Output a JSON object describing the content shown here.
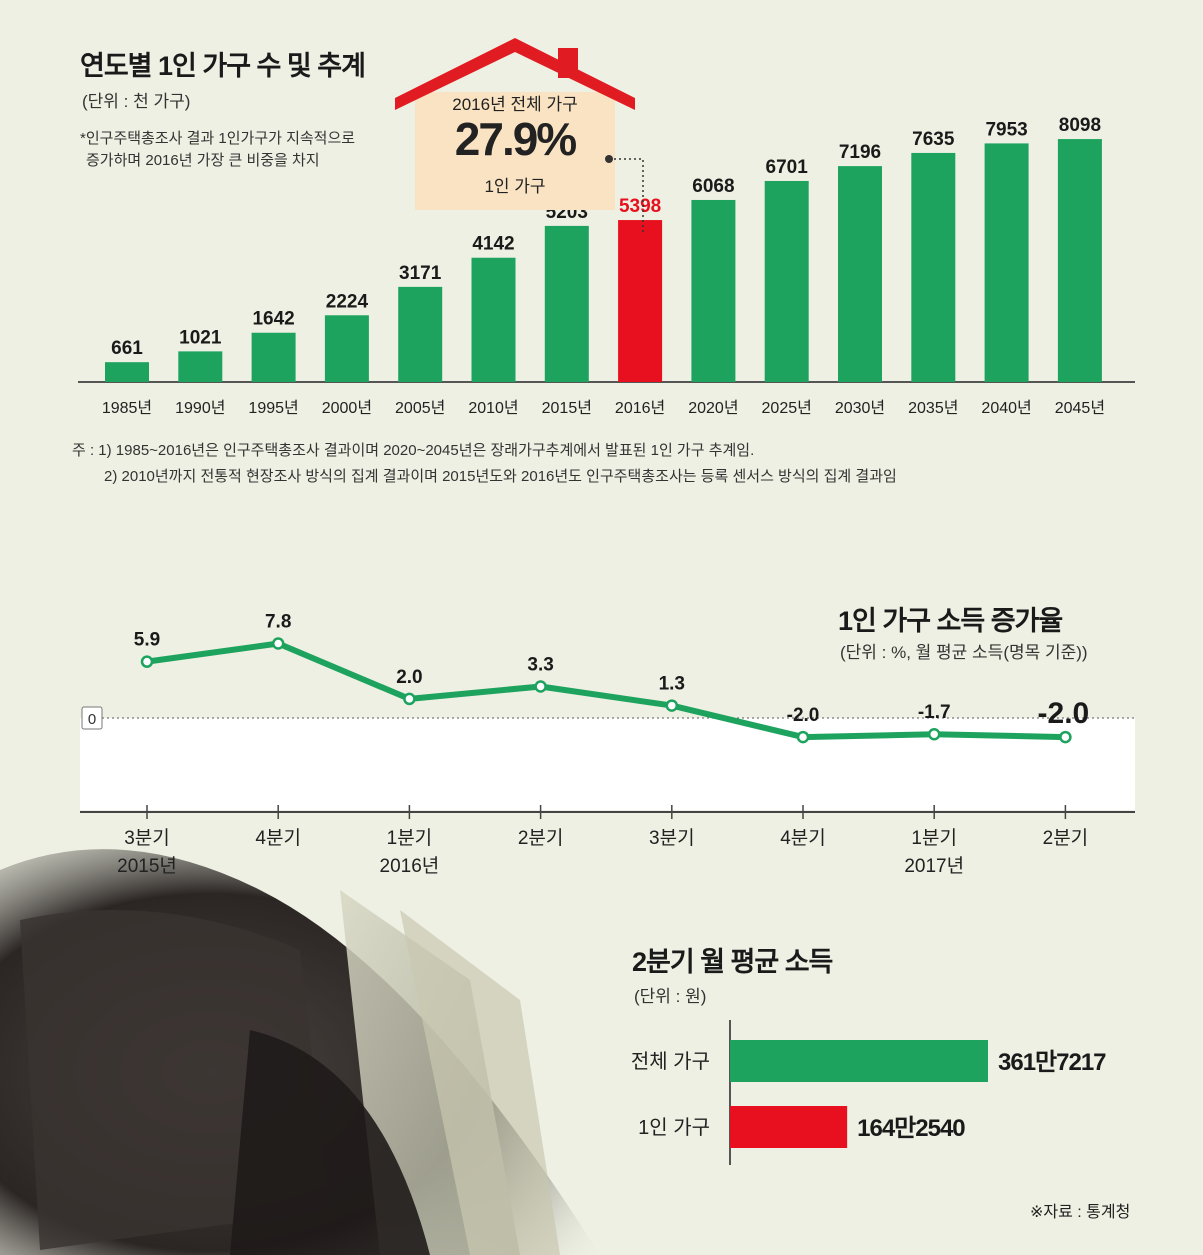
{
  "chart_data": [
    {
      "type": "bar",
      "title": "연도별 1인 가구 수 및 추계",
      "unit": "(단위 :  천 가구)",
      "categories": [
        "1985년",
        "1990년",
        "1995년",
        "2000년",
        "2005년",
        "2010년",
        "2015년",
        "2016년",
        "2020년",
        "2025년",
        "2030년",
        "2035년",
        "2040년",
        "2045년"
      ],
      "values": [
        661,
        1021,
        1642,
        2224,
        3171,
        4142,
        5203,
        5398,
        6068,
        6701,
        7196,
        7635,
        7953,
        8098
      ],
      "highlight_index": 7,
      "colors": {
        "bar": "#1ea35f",
        "highlight": "#e8101e"
      }
    },
    {
      "type": "line",
      "title": "1인 가구 소득 증가율",
      "unit": "(단위 : %,  월 평균 소득(명목 기준))",
      "categories": [
        "3분기\n2015년",
        "4분기",
        "1분기\n2016년",
        "2분기",
        "3분기",
        "4분기",
        "1분기\n2017년",
        "2분기"
      ],
      "values": [
        5.9,
        7.8,
        2.0,
        3.3,
        1.3,
        -2.0,
        -1.7,
        -2.0
      ],
      "value_labels": [
        "5.9",
        "7.8",
        "2.0",
        "3.3",
        "1.3",
        "-2.0",
        "-1.7",
        "-2.0"
      ],
      "zero_label": "0",
      "color": "#1ea35f"
    },
    {
      "type": "bar",
      "orientation": "horizontal",
      "title": "2분기 월 평균 소득",
      "unit": "(단위 :   원)",
      "categories": [
        "전체 가구",
        "1인 가구"
      ],
      "values": [
        3617217,
        1642540
      ],
      "value_labels": [
        "361만7217",
        "164만2540"
      ],
      "colors": [
        "#1ea35f",
        "#e8101e"
      ]
    }
  ],
  "notes": {
    "asterisk_line1": "*인구주택총조사 결과 1인가구가 지속적으로",
    "asterisk_line2": "증가하며 2016년 가장 큰 비중을 차지",
    "note1": "주 :  1) 1985~2016년은 인구주택총조사 결과이며 2020~2045년은 장래가구추계에서 발표된 1인 가구 추계임.",
    "note2": "2) 2010년까지 전통적 현장조사 방식의 집계 결과이며 2015년도와 2016년도 인구주택총조사는 등록 센서스 방식의 집계 결과임"
  },
  "callout": {
    "line1": "2016년 전체 가구",
    "big": "27.9%",
    "line3": "1인 가구"
  },
  "source": "※자료 : 통계청",
  "colors": {
    "background": "#eef0e3",
    "green": "#1ea35f",
    "red": "#e8101e",
    "roof": "#e11b22",
    "callout_bg": "#fae3c3"
  }
}
